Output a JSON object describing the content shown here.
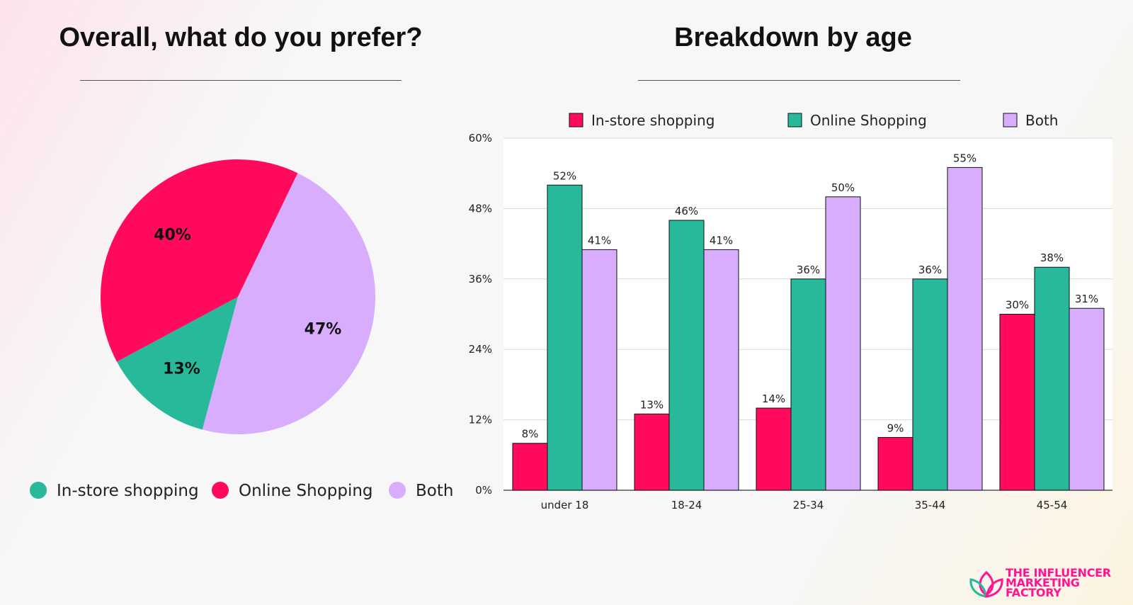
{
  "pie_title": "Overall, what do you prefer?",
  "bar_title": "Breakdown by age",
  "brand": {
    "logo_text": [
      "THE INFLUENCER",
      "MARKETING",
      "FACTORY"
    ],
    "color": "#ff1493"
  },
  "chart_data": [
    {
      "type": "pie",
      "title": "Overall, what do you prefer?",
      "slices": [
        {
          "name": "In-store shopping",
          "value": 13,
          "label": "13%",
          "color": "#28b89a"
        },
        {
          "name": "Online Shopping",
          "value": 40,
          "label": "40%",
          "color": "#ff0a5c"
        },
        {
          "name": "Both",
          "value": 47,
          "label": "47%",
          "color": "#d8adfe"
        }
      ],
      "legend_position": "bottom"
    },
    {
      "type": "bar",
      "title": "Breakdown by age",
      "categories": [
        "under 18",
        "18-24",
        "25-34",
        "35-44",
        "45-54"
      ],
      "series": [
        {
          "name": "In-store shopping",
          "color": "#ff0a5c",
          "values": [
            8,
            13,
            14,
            9,
            30
          ],
          "labels": [
            "8%",
            "13%",
            "14%",
            "9%",
            "30%"
          ]
        },
        {
          "name": "Online Shopping",
          "color": "#28b89a",
          "values": [
            52,
            46,
            36,
            36,
            38
          ],
          "labels": [
            "52%",
            "46%",
            "36%",
            "36%",
            "38%"
          ]
        },
        {
          "name": "Both",
          "color": "#d8adfe",
          "values": [
            41,
            41,
            50,
            55,
            31
          ],
          "labels": [
            "41%",
            "41%",
            "50%",
            "55%",
            "31%"
          ]
        }
      ],
      "ylim": [
        0,
        60
      ],
      "yticks": [
        "0%",
        "12%",
        "24%",
        "36%",
        "48%",
        "60%"
      ],
      "grid": true,
      "legend_position": "top"
    }
  ]
}
